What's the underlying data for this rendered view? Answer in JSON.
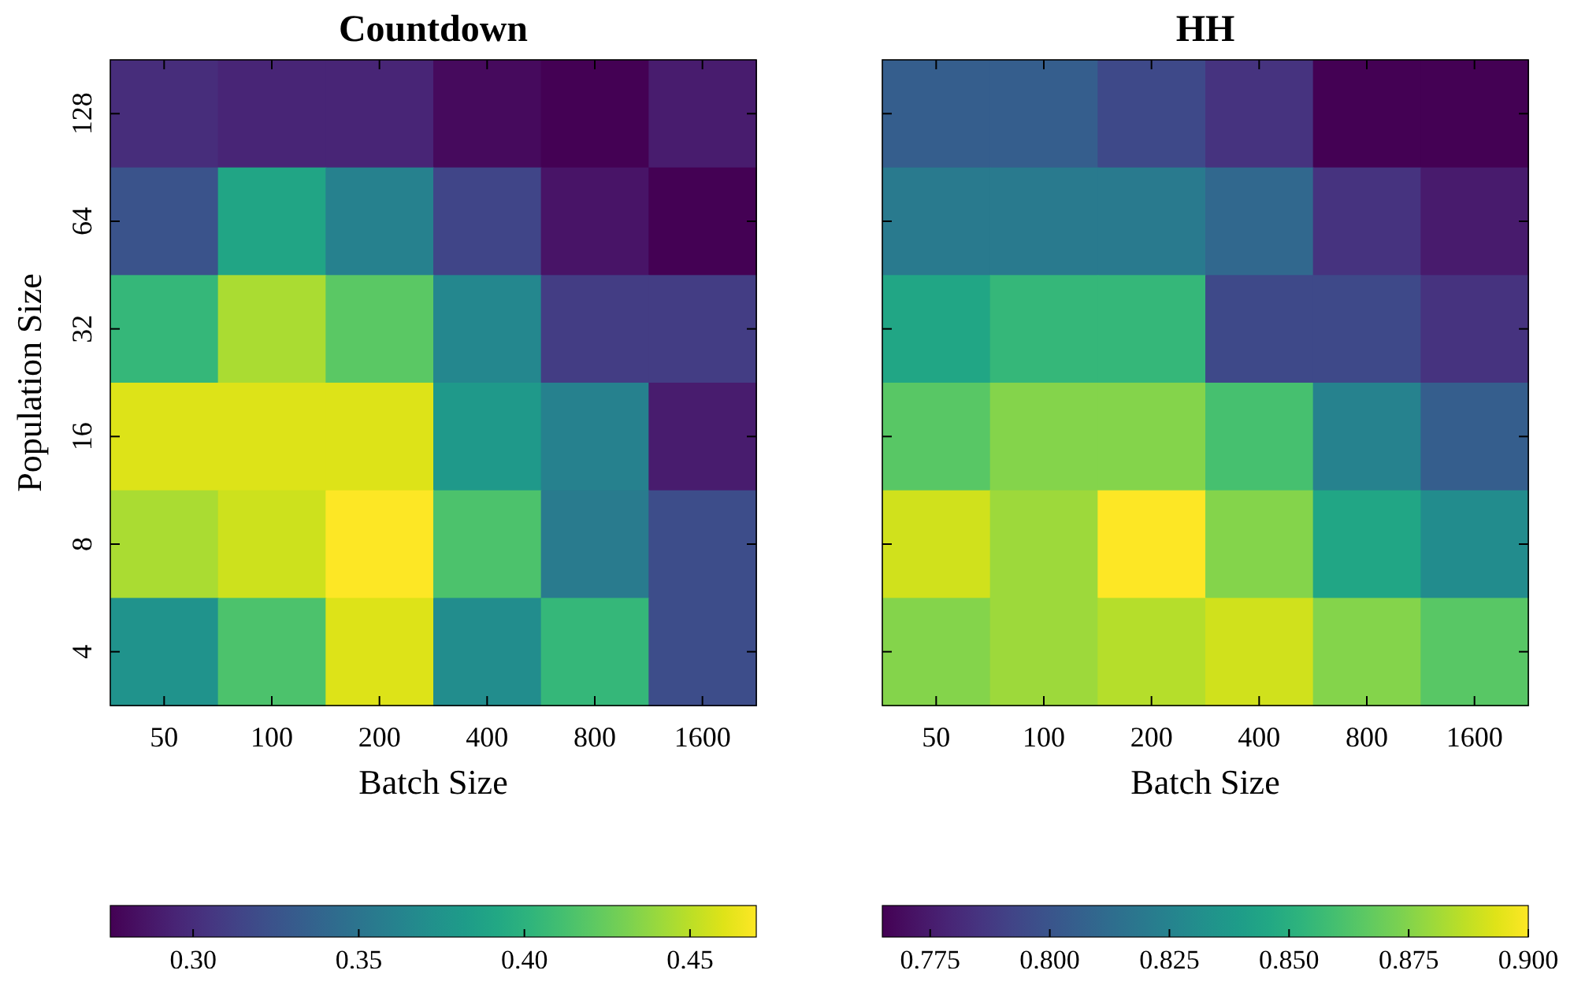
{
  "chart_data": [
    {
      "type": "heatmap",
      "title": "Countdown",
      "xlabel": "Batch Size",
      "ylabel": "Population Size",
      "categories": [
        "50",
        "100",
        "200",
        "400",
        "800",
        "1600"
      ],
      "y_categories": [
        "128",
        "64",
        "32",
        "16",
        "8",
        "4"
      ],
      "cells": [
        [
          0.3,
          0.295,
          0.295,
          0.28,
          0.275,
          0.29
        ],
        [
          0.325,
          0.39,
          0.36,
          0.315,
          0.285,
          0.275
        ],
        [
          0.405,
          0.445,
          0.42,
          0.365,
          0.31,
          0.31
        ],
        [
          0.46,
          0.46,
          0.46,
          0.38,
          0.36,
          0.29
        ],
        [
          0.445,
          0.455,
          0.47,
          0.415,
          0.355,
          0.32
        ],
        [
          0.375,
          0.415,
          0.46,
          0.37,
          0.405,
          0.32
        ]
      ],
      "clim": [
        0.275,
        0.47
      ],
      "cticks": [
        {
          "value": 0.3,
          "label": "0.30"
        },
        0.35,
        {
          "value": 0.4,
          "label": "0.40"
        },
        0.45
      ]
    },
    {
      "type": "heatmap",
      "title": "HH",
      "xlabel": "Batch Size",
      "categories": [
        "50",
        "100",
        "200",
        "400",
        "800",
        "1600"
      ],
      "y_categories": [
        "128",
        "64",
        "32",
        "16",
        "8",
        "4"
      ],
      "tick_labels": "x",
      "cells": [
        [
          0.805,
          0.805,
          0.795,
          0.785,
          0.765,
          0.765
        ],
        [
          0.82,
          0.82,
          0.82,
          0.81,
          0.785,
          0.775
        ],
        [
          0.845,
          0.855,
          0.855,
          0.795,
          0.795,
          0.785
        ],
        [
          0.865,
          0.875,
          0.875,
          0.86,
          0.825,
          0.805
        ],
        [
          0.89,
          0.88,
          0.9,
          0.875,
          0.845,
          0.83
        ],
        [
          0.875,
          0.88,
          0.885,
          0.89,
          0.875,
          0.865
        ]
      ],
      "clim": [
        0.765,
        0.9
      ],
      "cticks": [
        0.775,
        {
          "value": 0.8,
          "label": "0.800"
        },
        0.825,
        {
          "value": 0.85,
          "label": "0.850"
        },
        0.875,
        {
          "value": 0.9,
          "label": "0.900"
        }
      ]
    }
  ]
}
